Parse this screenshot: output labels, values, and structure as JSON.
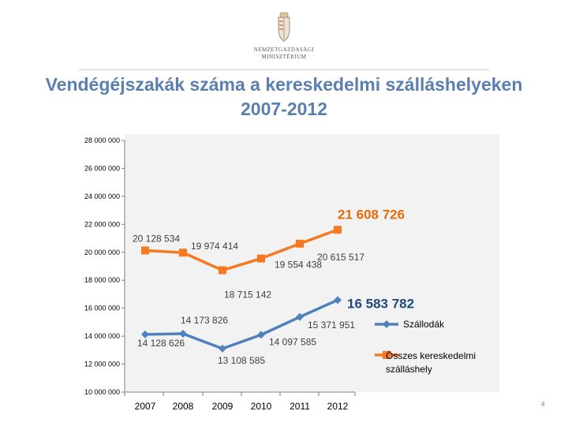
{
  "header": {
    "logo_lines": [
      "NEMZETGAZDASÁGI",
      "MINISZTÉRIUM"
    ],
    "title_line1": "Vendégéjszakák száma a kereskedelmi szálláshelyeken",
    "title_line2": "2007-2012"
  },
  "page_number": "4",
  "colors": {
    "hotels": "#4f81bd",
    "total": "#f47920",
    "title": "#5a7fb0",
    "plot_bg": "#f2f2f2"
  },
  "chart_data": {
    "type": "line",
    "categories": [
      "2007",
      "2008",
      "2009",
      "2010",
      "2011",
      "2012"
    ],
    "ylim": [
      10000000,
      28000000
    ],
    "yticks": [
      10000000,
      12000000,
      14000000,
      16000000,
      18000000,
      20000000,
      22000000,
      24000000,
      26000000,
      28000000
    ],
    "ytick_labels": [
      "10 000 000",
      "12 000 000",
      "14 000 000",
      "16 000 000",
      "18 000 000",
      "20 000 000",
      "22 000 000",
      "24 000 000",
      "26 000 000",
      "28 000 000"
    ],
    "legend_position": "right",
    "series": [
      {
        "name": "Szállodák",
        "color": "#4f81bd",
        "values": [
          14128626,
          14173826,
          13108585,
          14097585,
          15371951,
          16583782
        ],
        "labels": [
          "14 128 626",
          "14 173 826",
          "13 108 585",
          "14 097 585",
          "15 371 951",
          "16 583 782"
        ]
      },
      {
        "name": "Összes kereskedelmi szálláshely",
        "color": "#f47920",
        "values": [
          20128534,
          19974414,
          18715142,
          19554438,
          20615517,
          21608726
        ],
        "labels": [
          "20 128 534",
          "19 974 414",
          "18 715 142",
          "19 554 438",
          "20 615 517",
          "21 608 726"
        ]
      }
    ]
  }
}
